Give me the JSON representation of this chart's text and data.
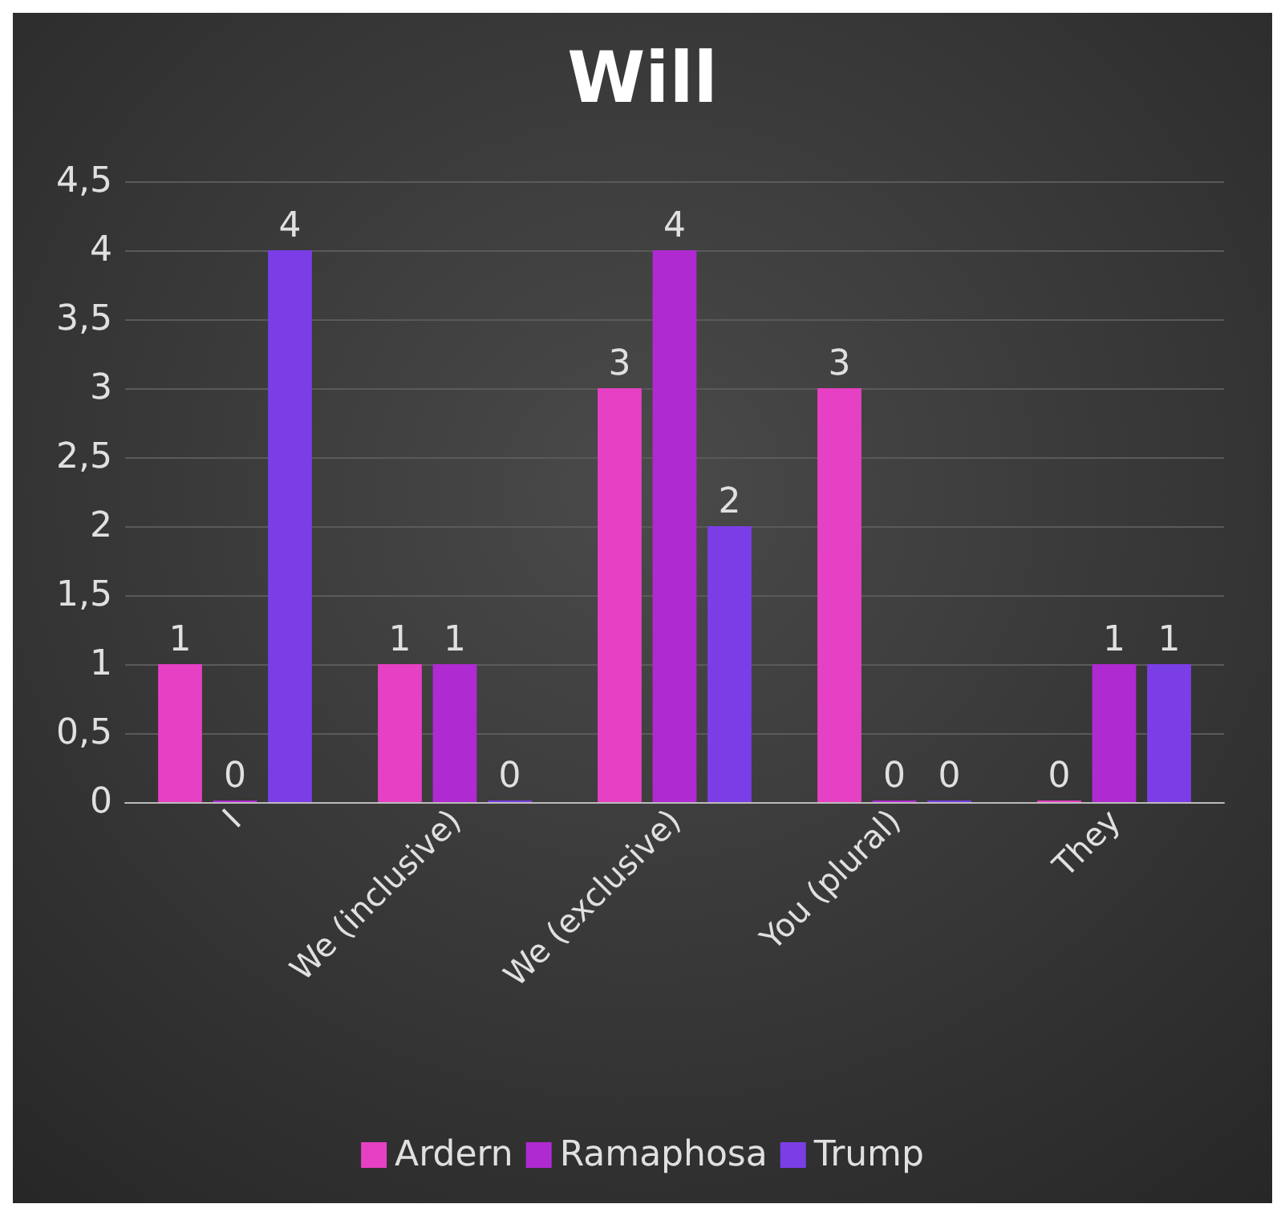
{
  "chart_data": {
    "type": "bar",
    "title": "Will",
    "categories": [
      "I",
      "We (inclusive)",
      "We (exclusive)",
      "You (plural)",
      "They"
    ],
    "series": [
      {
        "name": "Ardern",
        "color": "#e640c4",
        "values": [
          1,
          1,
          3,
          3,
          0
        ]
      },
      {
        "name": "Ramaphosa",
        "color": "#b02ad2",
        "values": [
          0,
          1,
          4,
          0,
          1
        ]
      },
      {
        "name": "Trump",
        "color": "#7b3ee6",
        "values": [
          4,
          0,
          2,
          0,
          1
        ]
      }
    ],
    "ylim": [
      0,
      4.5
    ],
    "yticks": [
      0,
      {
        "value": 0.5,
        "label": "0,5"
      },
      1,
      {
        "value": 1.5,
        "label": "1,5"
      },
      2,
      {
        "value": 2.5,
        "label": "2,5"
      },
      3,
      {
        "value": 3.5,
        "label": "3,5"
      },
      4,
      {
        "value": 4.5,
        "label": "4,5"
      }
    ],
    "grid": "y",
    "data_labels": true,
    "legend": "bottom"
  }
}
